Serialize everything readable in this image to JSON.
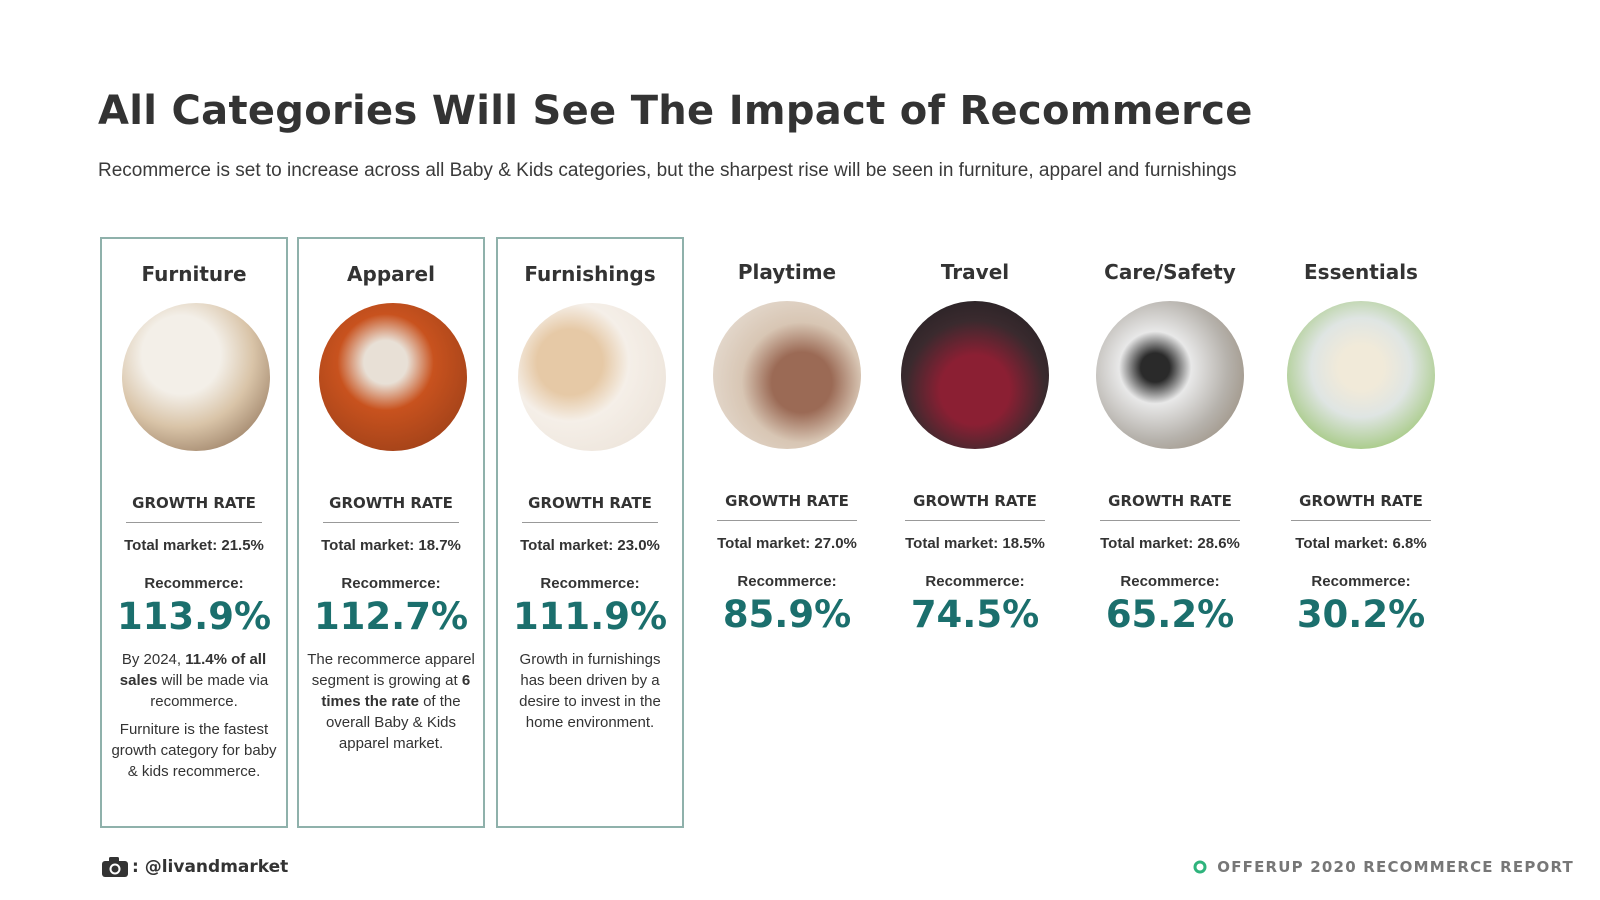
{
  "header": {
    "title": "All Categories Will See The Impact of Recommerce",
    "subtitle": "Recommerce is set to increase across all Baby & Kids categories, but the sharpest rise will be seen in furniture, apparel and furnishings"
  },
  "categories": [
    {
      "name": "Furniture",
      "growth_label": "GROWTH RATE",
      "total": "Total market: 21.5%",
      "recommerce_label": "Recommerce:",
      "recommerce": "113.9%",
      "highlighted": true,
      "paragraphs": [
        [
          {
            "text": "By 2024, "
          },
          {
            "text": "11.4% of all sales",
            "bold": true
          },
          {
            "text": " will be made via recommerce."
          }
        ],
        [
          {
            "text": "Furniture is the fastest growth category for baby & kids recommerce."
          }
        ]
      ]
    },
    {
      "name": "Apparel",
      "growth_label": "GROWTH RATE",
      "total": "Total market: 18.7%",
      "recommerce_label": "Recommerce:",
      "recommerce": "112.7%",
      "highlighted": true,
      "paragraphs": [
        [
          {
            "text": "The recommerce apparel segment is growing at "
          },
          {
            "text": "6 times the rate",
            "bold": true
          },
          {
            "text": " of the overall Baby & Kids apparel market."
          }
        ]
      ]
    },
    {
      "name": "Furnishings",
      "growth_label": "GROWTH RATE",
      "total": "Total market: 23.0%",
      "recommerce_label": "Recommerce:",
      "recommerce": "111.9%",
      "highlighted": true,
      "paragraphs": [
        [
          {
            "text": "Growth in furnishings has been driven by a desire to invest in the home environment."
          }
        ]
      ]
    },
    {
      "name": "Playtime",
      "growth_label": "GROWTH RATE",
      "total": "Total market: 27.0%",
      "recommerce_label": "Recommerce:",
      "recommerce": "85.9%",
      "highlighted": false,
      "paragraphs": []
    },
    {
      "name": "Travel",
      "growth_label": "GROWTH RATE",
      "total": "Total market: 18.5%",
      "recommerce_label": "Recommerce:",
      "recommerce": "74.5%",
      "highlighted": false,
      "paragraphs": []
    },
    {
      "name": "Care/Safety",
      "growth_label": "GROWTH RATE",
      "total": "Total market: 28.6%",
      "recommerce_label": "Recommerce:",
      "recommerce": "65.2%",
      "highlighted": false,
      "paragraphs": []
    },
    {
      "name": "Essentials",
      "growth_label": "GROWTH RATE",
      "total": "Total market: 6.8%",
      "recommerce_label": "Recommerce:",
      "recommerce": "30.2%",
      "highlighted": false,
      "paragraphs": []
    }
  ],
  "footer": {
    "credit": ": @livandmarket",
    "report": "OFFERUP 2020 RECOMMERCE REPORT"
  }
}
